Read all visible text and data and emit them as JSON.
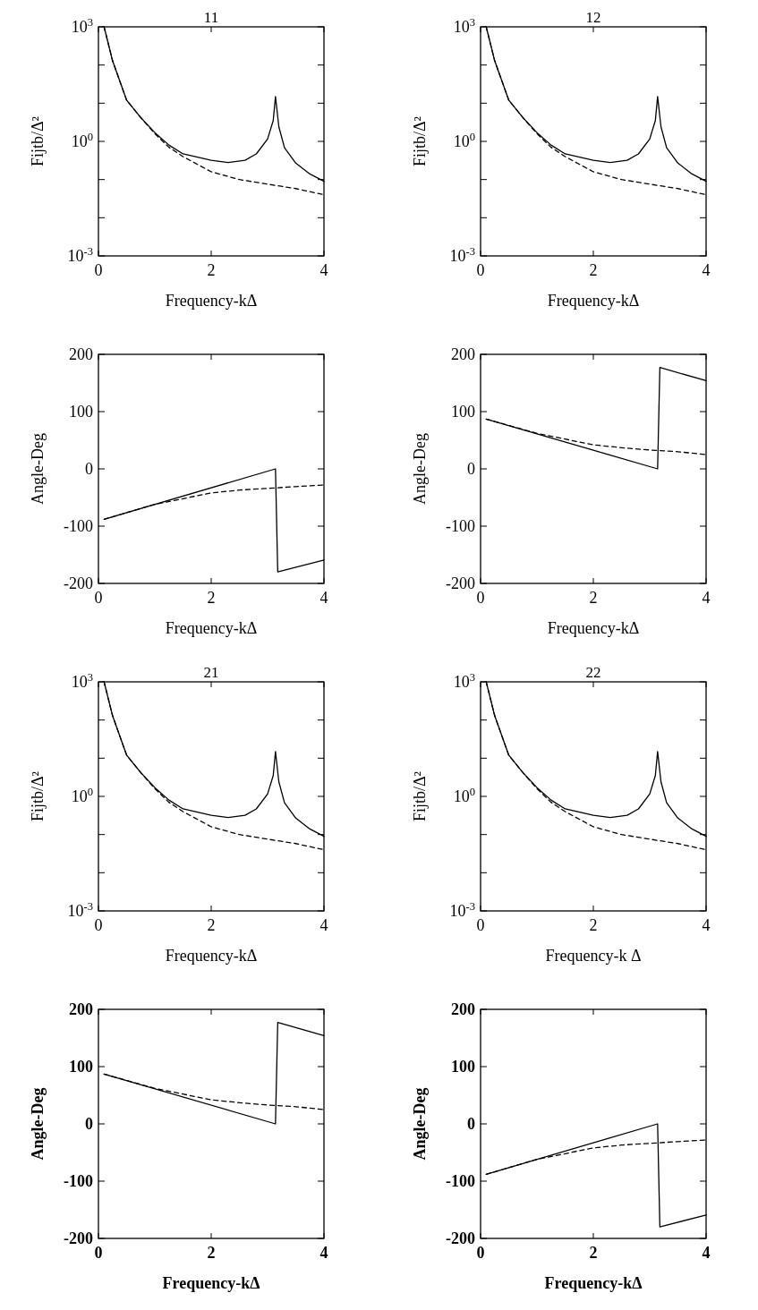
{
  "chart_data": [
    {
      "type": "line",
      "title": "11",
      "xlabel": "Frequency-kΔ",
      "ylabel": "Fijtb/Δ²",
      "log": "y",
      "xlim": [
        0,
        4
      ],
      "xticks": [
        0,
        2,
        4
      ],
      "ylim": [
        0.001,
        1000
      ],
      "yticks": [
        {
          "value": 0.001,
          "label": "10$^{-3}$"
        },
        {
          "value": 0.01,
          "label": null
        },
        {
          "value": 0.1,
          "label": null
        },
        {
          "value": 1,
          "label": "10$^{0}$"
        },
        {
          "value": 10,
          "label": null
        },
        {
          "value": 100,
          "label": null
        },
        {
          "value": 1000,
          "label": "10$^{3}$"
        }
      ],
      "grid": false,
      "series": [
        {
          "color": "#000000",
          "line_style": "solid",
          "x": [
            0.1,
            0.25,
            0.5,
            0.75,
            1,
            1.25,
            1.5,
            2,
            2.3,
            2.6,
            2.8,
            3,
            3.1,
            3.14,
            3.2,
            3.3,
            3.5,
            3.75,
            4
          ],
          "values": [
            1000,
            130,
            12,
            4.2,
            1.7,
            0.8,
            0.47,
            0.32,
            0.28,
            0.32,
            0.47,
            1.15,
            3.5,
            15,
            2.4,
            0.68,
            0.27,
            0.14,
            0.09
          ]
        },
        {
          "color": "#000000",
          "line_style": "dashed",
          "x": [
            0.1,
            0.25,
            0.5,
            0.75,
            1,
            1.25,
            1.5,
            2,
            2.5,
            3,
            3.5,
            4
          ],
          "values": [
            1000,
            130,
            12,
            4.2,
            1.6,
            0.7,
            0.4,
            0.16,
            0.1,
            0.076,
            0.058,
            0.04
          ]
        }
      ]
    },
    {
      "type": "line",
      "title": "12",
      "xlabel": "Frequency-kΔ",
      "ylabel": "Fijtb/Δ²",
      "log": "y",
      "xlim": [
        0,
        4
      ],
      "xticks": [
        0,
        2,
        4
      ],
      "ylim": [
        0.001,
        1000
      ],
      "yticks": [
        {
          "value": 0.001,
          "label": "10$^{-3}$"
        },
        {
          "value": 0.01,
          "label": null
        },
        {
          "value": 0.1,
          "label": null
        },
        {
          "value": 1,
          "label": "10$^{0}$"
        },
        {
          "value": 10,
          "label": null
        },
        {
          "value": 100,
          "label": null
        },
        {
          "value": 1000,
          "label": "10$^{3}$"
        }
      ],
      "grid": false,
      "series": [
        {
          "color": "#000000",
          "line_style": "solid",
          "x": [
            0.1,
            0.25,
            0.5,
            0.75,
            1,
            1.25,
            1.5,
            2,
            2.3,
            2.6,
            2.8,
            3,
            3.1,
            3.14,
            3.2,
            3.3,
            3.5,
            3.75,
            4
          ],
          "values": [
            1000,
            130,
            12,
            4.2,
            1.7,
            0.8,
            0.47,
            0.32,
            0.28,
            0.32,
            0.47,
            1.15,
            3.5,
            15,
            2.4,
            0.68,
            0.27,
            0.14,
            0.09
          ]
        },
        {
          "color": "#000000",
          "line_style": "dashed",
          "x": [
            0.1,
            0.25,
            0.5,
            0.75,
            1,
            1.25,
            1.5,
            2,
            2.5,
            3,
            3.5,
            4
          ],
          "values": [
            1000,
            130,
            12,
            4.2,
            1.6,
            0.7,
            0.4,
            0.16,
            0.1,
            0.076,
            0.058,
            0.04
          ]
        }
      ]
    },
    {
      "type": "line",
      "xlabel": "Frequency-kΔ",
      "ylabel": "Angle-Deg",
      "xlim": [
        0,
        4
      ],
      "xticks": [
        0,
        2,
        4
      ],
      "ylim": [
        -200,
        200
      ],
      "yticks": [
        -200,
        -100,
        0,
        100,
        200
      ],
      "grid": false,
      "series": [
        {
          "color": "#000000",
          "line_style": "solid",
          "x": [
            0.1,
            3.14,
            3.18,
            4
          ],
          "values": [
            -88,
            0,
            -180,
            -159
          ]
        },
        {
          "color": "#000000",
          "line_style": "dashed",
          "x": [
            0.1,
            1,
            1.5,
            2,
            2.5,
            3,
            3.5,
            4
          ],
          "values": [
            -88,
            -62,
            -52,
            -42,
            -37,
            -34,
            -31,
            -28
          ]
        }
      ]
    },
    {
      "type": "line",
      "xlabel": "Frequency-kΔ",
      "ylabel": "Angle-Deg",
      "xlim": [
        0,
        4
      ],
      "xticks": [
        0,
        2,
        4
      ],
      "ylim": [
        -200,
        200
      ],
      "yticks": [
        -200,
        -100,
        0,
        100,
        200
      ],
      "grid": false,
      "series": [
        {
          "color": "#000000",
          "line_style": "solid",
          "x": [
            0.1,
            3.14,
            3.18,
            4
          ],
          "values": [
            87,
            0,
            177,
            154
          ]
        },
        {
          "color": "#000000",
          "line_style": "dashed",
          "x": [
            0.1,
            1,
            1.5,
            2,
            2.5,
            3,
            3.5,
            4
          ],
          "values": [
            87,
            62,
            52,
            42,
            37,
            33,
            30,
            25
          ]
        }
      ]
    },
    {
      "type": "line",
      "title": "21",
      "xlabel": "Frequency-kΔ",
      "ylabel": "Fijtb/Δ²",
      "log": "y",
      "xlim": [
        0,
        4
      ],
      "xticks": [
        0,
        2,
        4
      ],
      "ylim": [
        0.001,
        1000
      ],
      "yticks": [
        {
          "value": 0.001,
          "label": "10$^{-3}$"
        },
        {
          "value": 0.01,
          "label": null
        },
        {
          "value": 0.1,
          "label": null
        },
        {
          "value": 1,
          "label": "10$^{0}$"
        },
        {
          "value": 10,
          "label": null
        },
        {
          "value": 100,
          "label": null
        },
        {
          "value": 1000,
          "label": "10$^{3}$"
        }
      ],
      "grid": false,
      "series": [
        {
          "color": "#000000",
          "line_style": "solid",
          "x": [
            0.1,
            0.25,
            0.5,
            0.75,
            1,
            1.25,
            1.5,
            2,
            2.3,
            2.6,
            2.8,
            3,
            3.1,
            3.14,
            3.2,
            3.3,
            3.5,
            3.75,
            4
          ],
          "values": [
            1000,
            130,
            12,
            4.2,
            1.7,
            0.8,
            0.47,
            0.32,
            0.28,
            0.32,
            0.47,
            1.15,
            3.5,
            15,
            2.4,
            0.68,
            0.27,
            0.14,
            0.09
          ]
        },
        {
          "color": "#000000",
          "line_style": "dashed",
          "x": [
            0.1,
            0.25,
            0.5,
            0.75,
            1,
            1.25,
            1.5,
            2,
            2.5,
            3,
            3.5,
            4
          ],
          "values": [
            1000,
            130,
            12,
            4.2,
            1.6,
            0.7,
            0.4,
            0.16,
            0.1,
            0.076,
            0.058,
            0.04
          ]
        }
      ]
    },
    {
      "type": "line",
      "title": "22",
      "xlabel": "Frequency-k Δ",
      "ylabel": "Fijtb/Δ²",
      "log": "y",
      "xlim": [
        0,
        4
      ],
      "xticks": [
        0,
        2,
        4
      ],
      "ylim": [
        0.001,
        1000
      ],
      "yticks": [
        {
          "value": 0.001,
          "label": "10$^{-3}$"
        },
        {
          "value": 0.01,
          "label": null
        },
        {
          "value": 0.1,
          "label": null
        },
        {
          "value": 1,
          "label": "10$^{0}$"
        },
        {
          "value": 10,
          "label": null
        },
        {
          "value": 100,
          "label": null
        },
        {
          "value": 1000,
          "label": "10$^{3}$"
        }
      ],
      "grid": false,
      "series": [
        {
          "color": "#000000",
          "line_style": "solid",
          "x": [
            0.1,
            0.25,
            0.5,
            0.75,
            1,
            1.25,
            1.5,
            2,
            2.3,
            2.6,
            2.8,
            3,
            3.1,
            3.14,
            3.2,
            3.3,
            3.5,
            3.75,
            4
          ],
          "values": [
            1000,
            130,
            12,
            4.2,
            1.7,
            0.8,
            0.47,
            0.32,
            0.28,
            0.32,
            0.47,
            1.15,
            3.5,
            15,
            2.4,
            0.68,
            0.27,
            0.14,
            0.09
          ]
        },
        {
          "color": "#000000",
          "line_style": "dashed",
          "x": [
            0.1,
            0.25,
            0.5,
            0.75,
            1,
            1.25,
            1.5,
            2,
            2.5,
            3,
            3.5,
            4
          ],
          "values": [
            1000,
            130,
            12,
            4.2,
            1.6,
            0.7,
            0.4,
            0.16,
            0.1,
            0.076,
            0.058,
            0.04
          ]
        }
      ]
    },
    {
      "type": "line",
      "xlabel": "Frequency-kΔ",
      "ylabel": "Angle-Deg",
      "xlim": [
        0,
        4
      ],
      "xticks": [
        0,
        2,
        4
      ],
      "ylim": [
        -200,
        200
      ],
      "yticks": [
        -200,
        -100,
        0,
        100,
        200
      ],
      "grid": false,
      "series": [
        {
          "color": "#000000",
          "line_style": "solid",
          "x": [
            0.1,
            3.14,
            3.18,
            4
          ],
          "values": [
            87,
            0,
            177,
            154
          ]
        },
        {
          "color": "#000000",
          "line_style": "dashed",
          "x": [
            0.1,
            1,
            1.5,
            2,
            2.5,
            3,
            3.5,
            4
          ],
          "values": [
            87,
            62,
            52,
            42,
            37,
            33,
            30,
            25
          ]
        }
      ]
    },
    {
      "type": "line",
      "xlabel": "Frequency-kΔ",
      "ylabel": "Angle-Deg",
      "xlim": [
        0,
        4
      ],
      "xticks": [
        0,
        2,
        4
      ],
      "ylim": [
        -200,
        200
      ],
      "yticks": [
        -200,
        -100,
        0,
        100,
        200
      ],
      "grid": false,
      "series": [
        {
          "color": "#000000",
          "line_style": "solid",
          "x": [
            0.1,
            3.14,
            3.18,
            4
          ],
          "values": [
            -88,
            0,
            -180,
            -159
          ]
        },
        {
          "color": "#000000",
          "line_style": "dashed",
          "x": [
            0.1,
            1,
            1.5,
            2,
            2.5,
            3,
            3.5,
            4
          ],
          "values": [
            -88,
            -62,
            -52,
            -42,
            -37,
            -34,
            -31,
            -28
          ]
        }
      ]
    }
  ]
}
